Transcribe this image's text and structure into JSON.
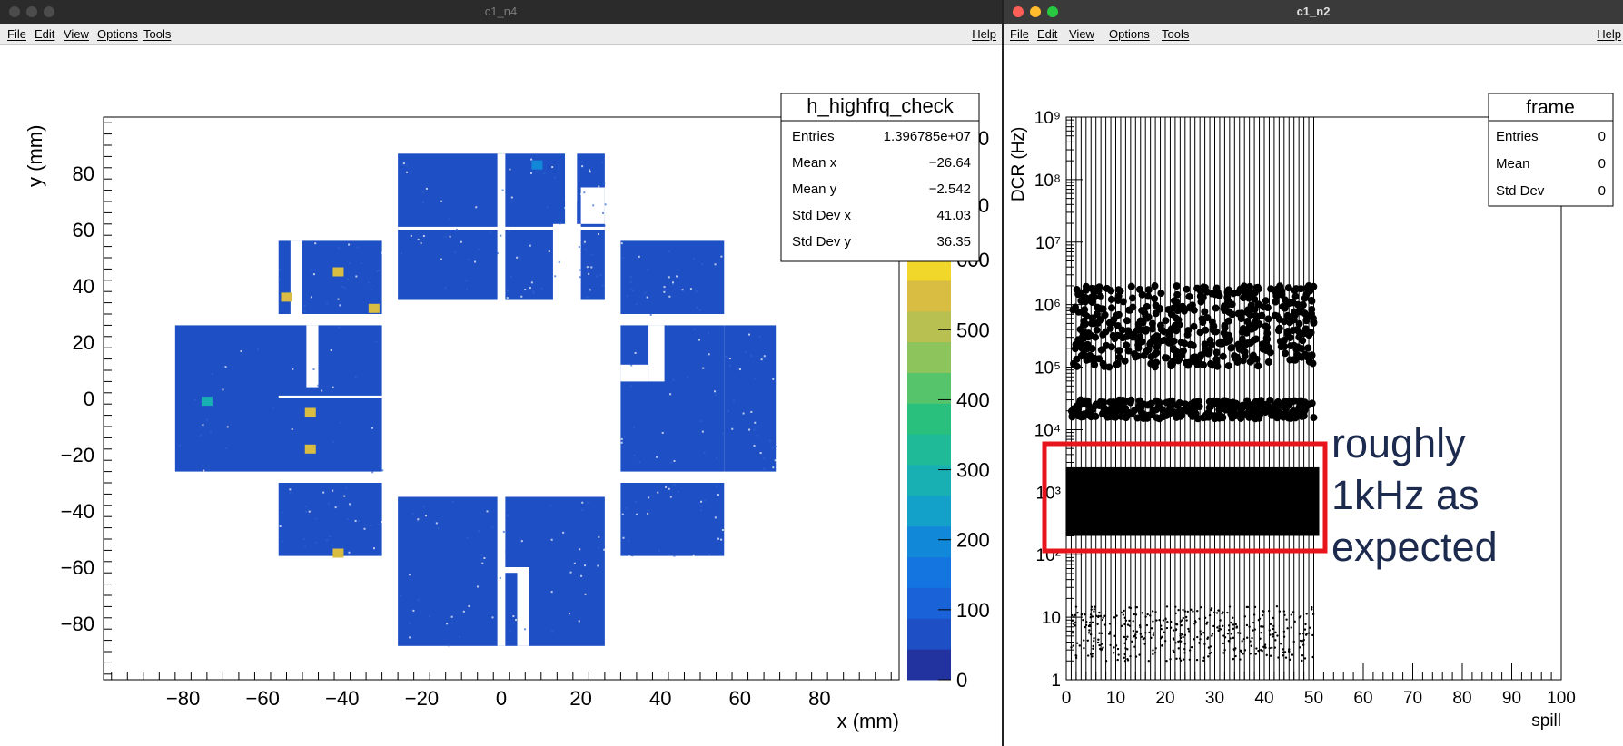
{
  "windows": [
    {
      "title": "c1_n4",
      "menu": [
        "File",
        "Edit",
        "View",
        "Options",
        "Tools"
      ],
      "help": "Help"
    },
    {
      "title": "c1_n2",
      "menu": [
        "File",
        "Edit",
        "View",
        "Options",
        "Tools"
      ],
      "help": "Help"
    }
  ],
  "left_stats": {
    "title": "h_highfrq_check",
    "rows": [
      {
        "label": "Entries",
        "value": "1.396785e+07"
      },
      {
        "label": "Mean x",
        "value": "−26.64"
      },
      {
        "label": "Mean y",
        "value": "−2.542"
      },
      {
        "label": "Std Dev x",
        "value": "41.03"
      },
      {
        "label": "Std Dev y",
        "value": "36.35"
      }
    ]
  },
  "right_stats": {
    "title": "frame",
    "rows": [
      {
        "label": "Entries",
        "value": "0"
      },
      {
        "label": "Mean",
        "value": "0"
      },
      {
        "label": "Std Dev",
        "value": "0"
      }
    ]
  },
  "annotation": {
    "lines": [
      "roughly",
      "1kHz as",
      "expected"
    ],
    "color": "#1c2a4e",
    "box_color": "#e8141c"
  },
  "chart_data": [
    {
      "type": "heatmap",
      "title": "h_highfrq_check",
      "xlabel": "x (mm)",
      "ylabel": "y (mm)",
      "xlim": [
        -100,
        100
      ],
      "ylim": [
        -100,
        100
      ],
      "x_ticks": [
        "−80",
        "−60",
        "−40",
        "−20",
        "0",
        "20",
        "40",
        "60",
        "80"
      ],
      "y_ticks": [
        "80",
        "60",
        "40",
        "20",
        "0",
        "−20",
        "−40",
        "−60",
        "−80"
      ],
      "colorbar_ticks": [
        "600",
        "500",
        "400",
        "300",
        "200",
        "100",
        "0"
      ],
      "colorbar_partial": [
        "0",
        "0"
      ],
      "zlim": [
        0,
        700
      ],
      "background_value": 50,
      "hot_cells": [
        {
          "x": -41,
          "y": 45,
          "value": 620
        },
        {
          "x": -54,
          "y": 36,
          "value": 620
        },
        {
          "x": -32,
          "y": 32,
          "value": 620
        },
        {
          "x": -48,
          "y": -5,
          "value": 620
        },
        {
          "x": -48,
          "y": -18,
          "value": 620
        },
        {
          "x": -41,
          "y": -55,
          "value": 620
        },
        {
          "x": -74,
          "y": -1,
          "value": 300
        },
        {
          "x": 9,
          "y": 83,
          "value": 200
        }
      ],
      "colors": {
        "low": "#2142a8",
        "high": "#f2d72b"
      }
    },
    {
      "type": "scatter",
      "title": "frame",
      "xlabel": "spill",
      "ylabel": "DCR (Hz)",
      "xlim": [
        0,
        100
      ],
      "ylim": [
        1,
        1000000000
      ],
      "log_y": true,
      "x_ticks": [
        "0",
        "10",
        "20",
        "30",
        "40",
        "50",
        "60",
        "70",
        "80",
        "90",
        "100"
      ],
      "y_ticks": [
        "1",
        "10",
        "10²",
        "10³",
        "10⁴",
        "10⁵",
        "10⁶",
        "10⁷",
        "10⁸",
        "10⁹"
      ],
      "series": [
        {
          "x_range": [
            1,
            50
          ],
          "y_band": [
            200,
            2500
          ],
          "level": "dense"
        },
        {
          "x_range": [
            1,
            50
          ],
          "y_band": [
            15000,
            30000
          ],
          "level": "medium"
        },
        {
          "x_range": [
            1,
            50
          ],
          "y_band": [
            100000,
            2000000
          ],
          "level": "sparse"
        },
        {
          "x_range": [
            1,
            50
          ],
          "y_band": [
            2,
            15
          ],
          "level": "faint"
        }
      ]
    }
  ]
}
